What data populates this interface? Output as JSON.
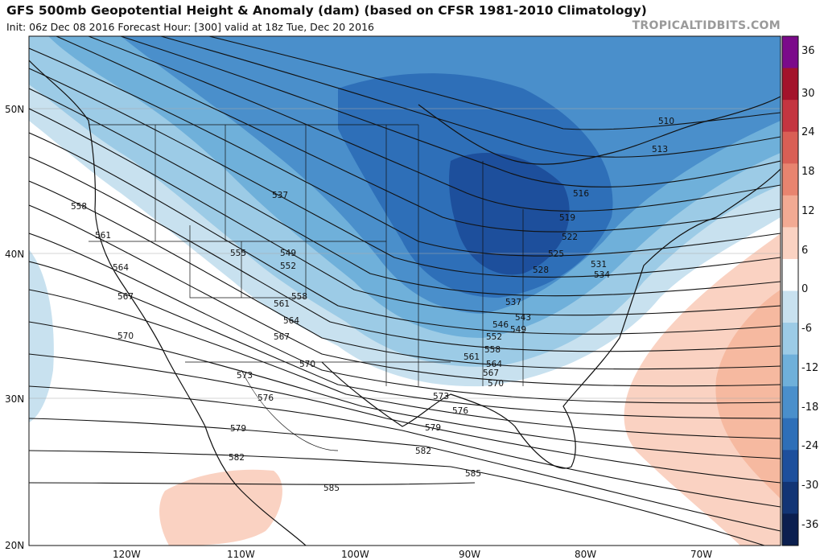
{
  "header": {
    "title": "GFS 500mb Geopotential Height & Anomaly (dam) (based on CFSR 1981-2010 Climatology)",
    "subtitle": "Init: 06z Dec 08 2016   Forecast Hour: [300]   valid at 18z Tue, Dec 20 2016",
    "brand": "TROPICALTIDBITS.COM"
  },
  "map": {
    "lat_labels": [
      "50N",
      "40N",
      "30N",
      "20N"
    ],
    "lon_labels": [
      "120W",
      "110W",
      "100W",
      "90W",
      "80W",
      "70W"
    ],
    "contour_labels": [
      "510",
      "513",
      "516",
      "519",
      "522",
      "525",
      "528",
      "531",
      "534",
      "537",
      "537",
      "543",
      "546",
      "549",
      "549",
      "552",
      "552",
      "555",
      "558",
      "558",
      "558",
      "561",
      "561",
      "561",
      "564",
      "564",
      "564",
      "567",
      "567",
      "567",
      "570",
      "570",
      "570",
      "573",
      "573",
      "576",
      "576",
      "579",
      "579",
      "582",
      "582",
      "585",
      "585"
    ]
  },
  "colorbar": {
    "labels": [
      "36",
      "30",
      "24",
      "18",
      "12",
      "6",
      "0",
      "-6",
      "-12",
      "-18",
      "-24",
      "-30",
      "-36"
    ],
    "colors": [
      "#7b0a8a",
      "#a3132b",
      "#c43540",
      "#d95f55",
      "#e8846f",
      "#f2aa93",
      "#fad2c2",
      "#ffffff",
      "#c8e1ef",
      "#9ccbe6",
      "#6fb0da",
      "#4a8fcb",
      "#2e6fb8",
      "#1d4f9c",
      "#123575",
      "#0b1f4f"
    ]
  },
  "colors": {
    "background": "#ffffff",
    "negative_anomaly": "#4a8fcb",
    "positive_anomaly": "#f6b9a0",
    "contour": "#111111"
  }
}
